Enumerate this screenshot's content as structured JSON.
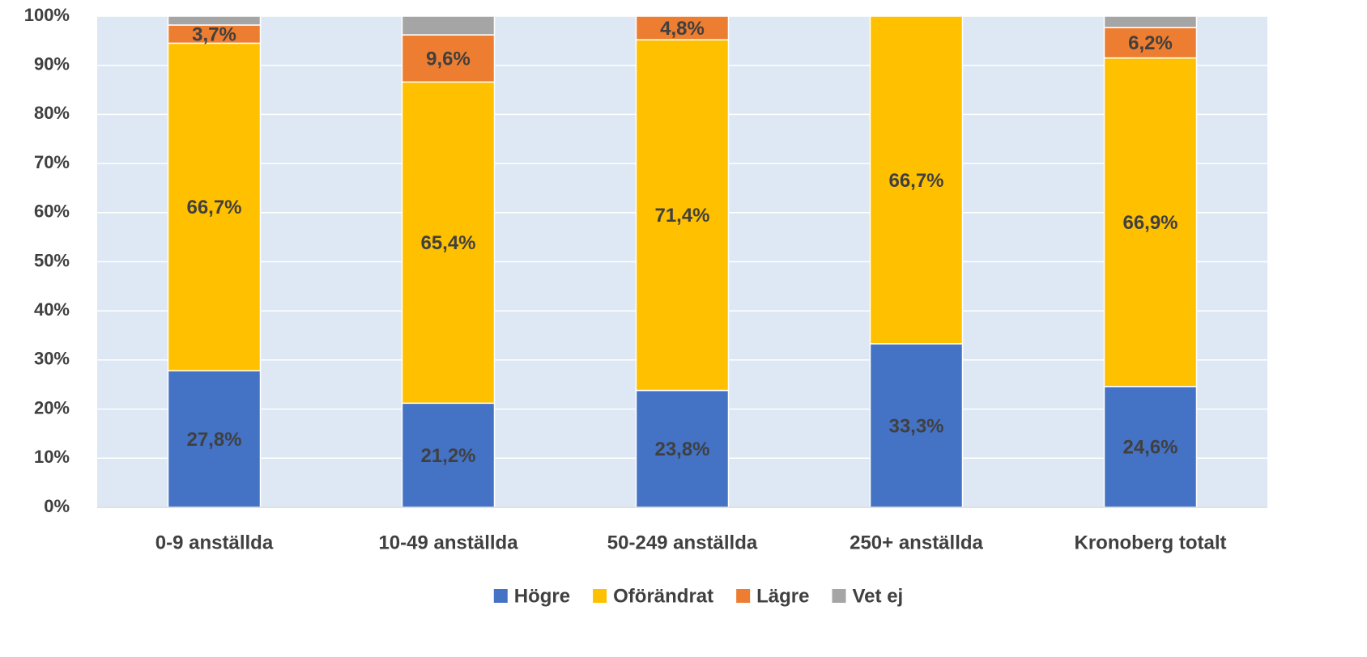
{
  "chart_data": {
    "type": "stacked_bar",
    "categories": [
      "0-9 anställda",
      "10-49 anställda",
      "50-249 anställda",
      "250+ anställda",
      "Kronoberg totalt"
    ],
    "series": [
      {
        "name": "Högre",
        "color": "#4472c4",
        "values": [
          27.8,
          21.2,
          23.8,
          33.3,
          24.6
        ],
        "value_labels": [
          "27,8%",
          "21,2%",
          "23,8%",
          "33,3%",
          "24,6%"
        ]
      },
      {
        "name": "Oförändrat",
        "color": "#ffc000",
        "values": [
          66.7,
          65.4,
          71.4,
          66.7,
          66.9
        ],
        "value_labels": [
          "66,7%",
          "65,4%",
          "71,4%",
          "66,7%",
          "66,9%"
        ]
      },
      {
        "name": "Lägre",
        "color": "#ed7d31",
        "values": [
          3.7,
          9.6,
          4.8,
          0,
          6.2
        ],
        "value_labels": [
          "3,7%",
          "9,6%",
          "4,8%",
          null,
          "6,2%"
        ]
      },
      {
        "name": "Vet ej",
        "color": "#a5a5a5",
        "values": [
          1.8,
          3.8,
          0,
          0,
          2.3
        ]
      }
    ],
    "ylim": [
      0,
      100
    ],
    "yticks": [
      {
        "value": 0,
        "label": "0%"
      },
      {
        "value": 10,
        "label": "10%"
      },
      {
        "value": 20,
        "label": "20%"
      },
      {
        "value": 30,
        "label": "30%"
      },
      {
        "value": 40,
        "label": "40%"
      },
      {
        "value": 50,
        "label": "50%"
      },
      {
        "value": 60,
        "label": "60%"
      },
      {
        "value": 70,
        "label": "70%"
      },
      {
        "value": 80,
        "label": "80%"
      },
      {
        "value": 90,
        "label": "90%"
      },
      {
        "value": 100,
        "label": "100%"
      }
    ],
    "grid": true,
    "legend": "bottom"
  }
}
